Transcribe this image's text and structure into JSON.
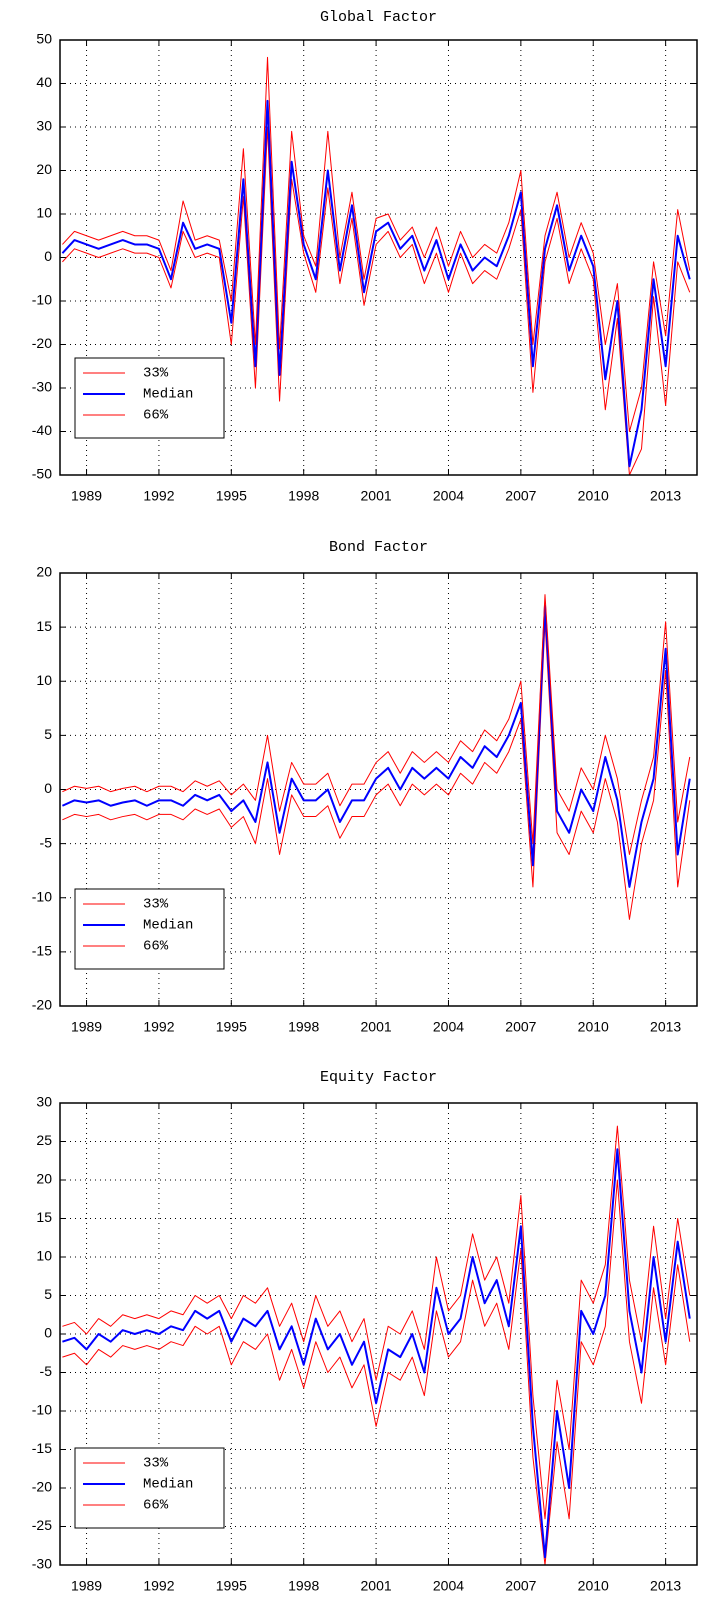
{
  "chart_data": [
    {
      "type": "line",
      "title": "Global Factor",
      "x": [
        1988,
        1988.5,
        1989,
        1989.5,
        1990,
        1990.5,
        1991,
        1991.5,
        1992,
        1992.5,
        1993,
        1993.5,
        1994,
        1994.5,
        1995,
        1995.5,
        1996,
        1996.5,
        1997,
        1997.5,
        1998,
        1998.5,
        1999,
        1999.5,
        2000,
        2000.5,
        2001,
        2001.5,
        2002,
        2002.5,
        2003,
        2003.5,
        2004,
        2004.5,
        2005,
        2005.5,
        2006,
        2006.5,
        2007,
        2007.5,
        2008,
        2008.5,
        2009,
        2009.5,
        2010,
        2010.5,
        2011,
        2011.5,
        2012,
        2012.5,
        2013,
        2013.5,
        2014
      ],
      "xlim": [
        1987.9,
        2014.3
      ],
      "xticks": [
        1989,
        1992,
        1995,
        1998,
        2001,
        2004,
        2007,
        2010,
        2013
      ],
      "ylim": [
        -50,
        50
      ],
      "yticks": [
        -50,
        -40,
        -30,
        -20,
        -10,
        0,
        10,
        20,
        30,
        40,
        50
      ],
      "grid": true,
      "legend": "lower left",
      "series": [
        {
          "name": "33%",
          "color": "#ff0000",
          "values": [
            -1,
            2,
            1,
            0,
            1,
            2,
            1,
            1,
            0,
            -7,
            6,
            0,
            1,
            0,
            -20,
            14,
            -30,
            30,
            -33,
            18,
            1,
            -8,
            16,
            -6,
            9,
            -11,
            3,
            6,
            0,
            3,
            -6,
            1,
            -8,
            1,
            -6,
            -3,
            -5,
            2,
            11,
            -31,
            -1,
            9,
            -6,
            2,
            -5,
            -35,
            -14,
            -50,
            -44,
            -9,
            -34,
            -1,
            -8
          ]
        },
        {
          "name": "Median",
          "color": "#0000ff",
          "values": [
            1,
            4,
            3,
            2,
            3,
            4,
            3,
            3,
            2,
            -5,
            8,
            2,
            3,
            2,
            -15,
            18,
            -25,
            36,
            -27,
            22,
            3,
            -5,
            20,
            -3,
            12,
            -8,
            6,
            8,
            2,
            5,
            -3,
            4,
            -5,
            3,
            -3,
            0,
            -2,
            5,
            15,
            -25,
            2,
            12,
            -3,
            5,
            -2,
            -28,
            -10,
            -48,
            -35,
            -5,
            -25,
            5,
            -5
          ]
        },
        {
          "name": "66%",
          "color": "#ff0000",
          "values": [
            3,
            6,
            5,
            4,
            5,
            6,
            5,
            5,
            4,
            -3,
            13,
            4,
            5,
            4,
            -10,
            25,
            -20,
            46,
            -21,
            29,
            5,
            -2,
            29,
            0,
            15,
            -5,
            9,
            10,
            4,
            7,
            0,
            7,
            -2,
            6,
            0,
            3,
            1,
            8,
            20,
            -20,
            5,
            15,
            0,
            8,
            1,
            -20,
            -6,
            -40,
            -30,
            -1,
            -18,
            11,
            -3
          ]
        }
      ]
    },
    {
      "type": "line",
      "title": "Bond Factor",
      "x": [
        1988,
        1988.5,
        1989,
        1989.5,
        1990,
        1990.5,
        1991,
        1991.5,
        1992,
        1992.5,
        1993,
        1993.5,
        1994,
        1994.5,
        1995,
        1995.5,
        1996,
        1996.5,
        1997,
        1997.5,
        1998,
        1998.5,
        1999,
        1999.5,
        2000,
        2000.5,
        2001,
        2001.5,
        2002,
        2002.5,
        2003,
        2003.5,
        2004,
        2004.5,
        2005,
        2005.5,
        2006,
        2006.5,
        2007,
        2007.5,
        2008,
        2008.5,
        2009,
        2009.5,
        2010,
        2010.5,
        2011,
        2011.5,
        2012,
        2012.5,
        2013,
        2013.5,
        2014
      ],
      "xlim": [
        1987.9,
        2014.3
      ],
      "xticks": [
        1989,
        1992,
        1995,
        1998,
        2001,
        2004,
        2007,
        2010,
        2013
      ],
      "ylim": [
        -20,
        20
      ],
      "yticks": [
        -20,
        -15,
        -10,
        -5,
        0,
        5,
        10,
        15,
        20
      ],
      "grid": true,
      "legend": "lower left",
      "series": [
        {
          "name": "33%",
          "color": "#ff0000",
          "values": [
            -2.8,
            -2.3,
            -2.5,
            -2.3,
            -2.8,
            -2.5,
            -2.3,
            -2.8,
            -2.3,
            -2.3,
            -2.8,
            -1.8,
            -2.3,
            -1.8,
            -3.5,
            -2.5,
            -5,
            1,
            -6,
            -0.5,
            -2.5,
            -2.5,
            -1.5,
            -4.5,
            -2.5,
            -2.5,
            -0.5,
            0.5,
            -1.5,
            0.5,
            -0.5,
            0.5,
            -0.5,
            1.5,
            0.5,
            2.5,
            1.5,
            3.5,
            6.5,
            -9,
            15.5,
            -4,
            -6,
            -2,
            -4,
            1,
            -3,
            -12,
            -5,
            -1,
            11,
            -9,
            -1
          ]
        },
        {
          "name": "Median",
          "color": "#0000ff",
          "values": [
            -1.5,
            -1,
            -1.2,
            -1,
            -1.5,
            -1.2,
            -1,
            -1.5,
            -1,
            -1,
            -1.5,
            -0.5,
            -1,
            -0.5,
            -2,
            -1,
            -3,
            2.5,
            -4,
            1,
            -1,
            -1,
            0,
            -3,
            -1,
            -1,
            1,
            2,
            0,
            2,
            1,
            2,
            1,
            3,
            2,
            4,
            3,
            5,
            8,
            -7,
            17,
            -2,
            -4,
            0,
            -2,
            3,
            -1,
            -9,
            -3,
            1,
            13,
            -6,
            1
          ]
        },
        {
          "name": "66%",
          "color": "#ff0000",
          "values": [
            -0.2,
            0.3,
            0.1,
            0.3,
            -0.2,
            0.1,
            0.3,
            -0.2,
            0.3,
            0.3,
            -0.2,
            0.8,
            0.3,
            0.8,
            -0.5,
            0.5,
            -1,
            5,
            -2,
            2.5,
            0.5,
            0.5,
            1.5,
            -1.5,
            0.5,
            0.5,
            2.5,
            3.5,
            1.5,
            3.5,
            2.5,
            3.5,
            2.5,
            4.5,
            3.5,
            5.5,
            4.5,
            6.5,
            10,
            -5,
            18,
            0,
            -2,
            2,
            0,
            5,
            1,
            -6,
            -1,
            3,
            15.5,
            -3,
            3
          ]
        }
      ]
    },
    {
      "type": "line",
      "title": "Equity Factor",
      "x": [
        1988,
        1988.5,
        1989,
        1989.5,
        1990,
        1990.5,
        1991,
        1991.5,
        1992,
        1992.5,
        1993,
        1993.5,
        1994,
        1994.5,
        1995,
        1995.5,
        1996,
        1996.5,
        1997,
        1997.5,
        1998,
        1998.5,
        1999,
        1999.5,
        2000,
        2000.5,
        2001,
        2001.5,
        2002,
        2002.5,
        2003,
        2003.5,
        2004,
        2004.5,
        2005,
        2005.5,
        2006,
        2006.5,
        2007,
        2007.5,
        2008,
        2008.5,
        2009,
        2009.5,
        2010,
        2010.5,
        2011,
        2011.5,
        2012,
        2012.5,
        2013,
        2013.5,
        2014
      ],
      "xlim": [
        1987.9,
        2014.3
      ],
      "xticks": [
        1989,
        1992,
        1995,
        1998,
        2001,
        2004,
        2007,
        2010,
        2013
      ],
      "ylim": [
        -30,
        30
      ],
      "yticks": [
        -30,
        -25,
        -20,
        -15,
        -10,
        -5,
        0,
        5,
        10,
        15,
        20,
        25,
        30
      ],
      "grid": true,
      "legend": "lower left",
      "series": [
        {
          "name": "33%",
          "color": "#ff0000",
          "values": [
            -3,
            -2.5,
            -4,
            -2,
            -3,
            -1.5,
            -2,
            -1.5,
            -2,
            -1,
            -1.5,
            1,
            0,
            1,
            -4,
            -1,
            -2,
            0,
            -6,
            -2,
            -7,
            -1,
            -5,
            -3,
            -7,
            -4,
            -12,
            -5,
            -6,
            -3,
            -8,
            3,
            -3,
            -1,
            7,
            1,
            4,
            -2,
            11,
            -16,
            -30,
            -14,
            -24,
            -1,
            -4,
            1,
            20,
            -1,
            -9,
            6,
            -4,
            9,
            -1
          ]
        },
        {
          "name": "Median",
          "color": "#0000ff",
          "values": [
            -1,
            -0.5,
            -2,
            0,
            -1,
            0.5,
            0,
            0.5,
            0,
            1,
            0.5,
            3,
            2,
            3,
            -1,
            2,
            1,
            3,
            -2,
            1,
            -4,
            2,
            -2,
            0,
            -4,
            -1,
            -9,
            -2,
            -3,
            0,
            -5,
            6,
            0,
            2,
            10,
            4,
            7,
            1,
            14,
            -12,
            -29,
            -10,
            -20,
            3,
            0,
            5,
            24,
            3,
            -5,
            10,
            -1,
            12,
            2
          ]
        },
        {
          "name": "66%",
          "color": "#ff0000",
          "values": [
            1,
            1.5,
            0,
            2,
            1,
            2.5,
            2,
            2.5,
            2,
            3,
            2.5,
            5,
            4,
            5,
            2,
            5,
            4,
            6,
            1,
            4,
            -1,
            5,
            1,
            3,
            -1,
            2,
            -6,
            1,
            0,
            3,
            -2,
            10,
            3,
            5,
            13,
            7,
            10,
            4,
            18,
            -8,
            -24,
            -6,
            -15,
            7,
            4,
            9,
            27,
            7,
            -1,
            14,
            2,
            15,
            5
          ]
        }
      ]
    }
  ]
}
